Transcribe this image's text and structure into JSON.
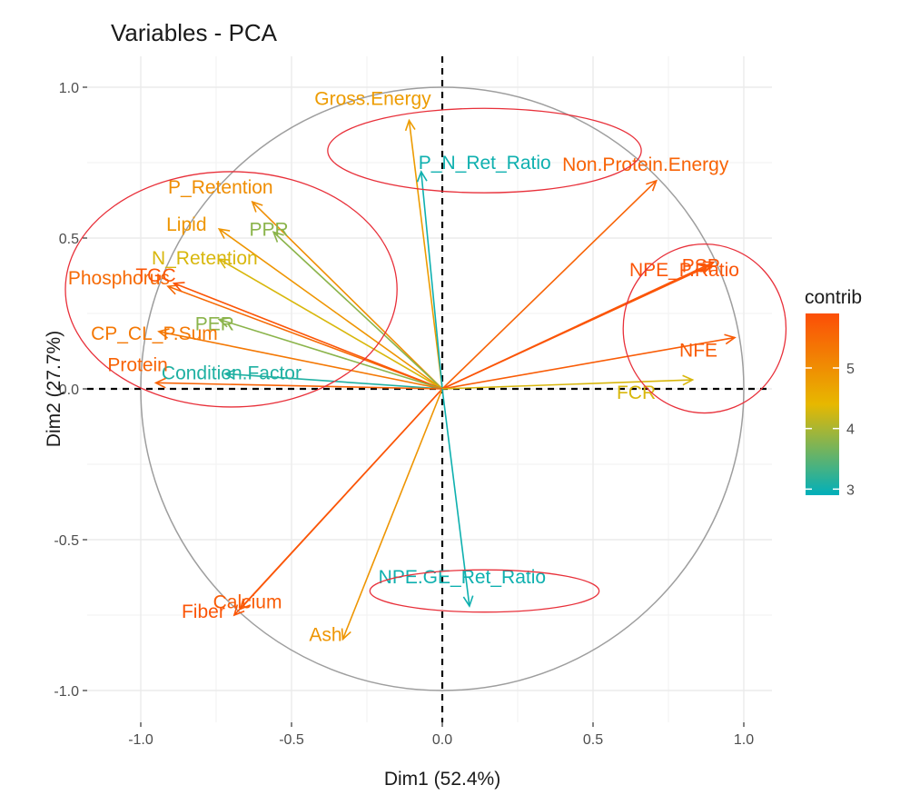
{
  "chart_data": {
    "type": "scatter",
    "subtype": "pca-variable-correlation-circle",
    "title": "Variables - PCA",
    "xlabel": "Dim1 (52.4%)",
    "ylabel": "Dim2 (27.7%)",
    "xlim": [
      -1.1,
      1.1
    ],
    "ylim": [
      -1.07,
      1.07
    ],
    "x_ticks": [
      -1.0,
      -0.5,
      0.0,
      0.5,
      1.0
    ],
    "x_tick_labels": [
      "-1.0",
      "-0.5",
      "0.0",
      "0.5",
      "1.0"
    ],
    "y_ticks": [
      -1.0,
      -0.5,
      0.0,
      0.5,
      1.0
    ],
    "y_tick_labels": [
      "-1.0",
      "-0.5",
      "0.0",
      "0.5",
      "1.0"
    ],
    "grid": true,
    "legend": {
      "title": "contrib",
      "position": "right",
      "range": [
        2.9,
        5.9
      ],
      "ticks": [
        3,
        4,
        5
      ],
      "tick_labels": [
        "3",
        "4",
        "5"
      ],
      "colors": [
        "#00AFBB",
        "#E7B800",
        "#FC4E07"
      ]
    },
    "variables": [
      {
        "name": "Gross.Energy",
        "x": -0.11,
        "y": 0.89,
        "contrib": 4.8
      },
      {
        "name": "P_N_Ret_Ratio",
        "x": -0.07,
        "y": 0.72,
        "contrib": 3.0
      },
      {
        "name": "P_Retention",
        "x": -0.63,
        "y": 0.62,
        "contrib": 5.0
      },
      {
        "name": "PPR",
        "x": -0.56,
        "y": 0.52,
        "contrib": 3.8
      },
      {
        "name": "Lipid",
        "x": -0.74,
        "y": 0.53,
        "contrib": 4.9
      },
      {
        "name": "N_Retention",
        "x": -0.74,
        "y": 0.43,
        "contrib": 4.3
      },
      {
        "name": "Phosphorus",
        "x": -0.91,
        "y": 0.34,
        "contrib": 5.5
      },
      {
        "name": "TGC",
        "x": -0.89,
        "y": 0.35,
        "contrib": 5.8
      },
      {
        "name": "PER",
        "x": -0.74,
        "y": 0.23,
        "contrib": 3.8
      },
      {
        "name": "CP_CL_P.Sum",
        "x": -0.94,
        "y": 0.19,
        "contrib": 5.3
      },
      {
        "name": "Condition.Factor",
        "x": -0.72,
        "y": 0.05,
        "contrib": 3.1
      },
      {
        "name": "Protein",
        "x": -0.95,
        "y": 0.02,
        "contrib": 5.6
      },
      {
        "name": "Non.Protein.Energy",
        "x": 0.71,
        "y": 0.69,
        "contrib": 5.6
      },
      {
        "name": "PSP",
        "x": 0.9,
        "y": 0.42,
        "contrib": 5.8
      },
      {
        "name": "NPE_P.Ratio",
        "x": 0.89,
        "y": 0.41,
        "contrib": 5.8
      },
      {
        "name": "NFE",
        "x": 0.97,
        "y": 0.17,
        "contrib": 5.7
      },
      {
        "name": "FCR",
        "x": 0.83,
        "y": 0.03,
        "contrib": 4.3
      },
      {
        "name": "Calcium",
        "x": -0.67,
        "y": -0.73,
        "contrib": 5.7
      },
      {
        "name": "Fiber",
        "x": -0.69,
        "y": -0.75,
        "contrib": 5.8
      },
      {
        "name": "Ash",
        "x": -0.33,
        "y": -0.83,
        "contrib": 4.9
      },
      {
        "name": "NPE.GE_Ret_Ratio",
        "x": 0.09,
        "y": -0.72,
        "contrib": 3.0
      }
    ],
    "annotations": [
      {
        "type": "ellipse",
        "color": "#E8303A",
        "cx": -0.7,
        "cy": 0.33,
        "rx": 0.55,
        "ry": 0.39
      },
      {
        "type": "ellipse",
        "color": "#E8303A",
        "cx": 0.14,
        "cy": 0.79,
        "rx": 0.52,
        "ry": 0.14
      },
      {
        "type": "ellipse",
        "color": "#E8303A",
        "cx": 0.87,
        "cy": 0.2,
        "rx": 0.27,
        "ry": 0.28
      },
      {
        "type": "ellipse",
        "color": "#E8303A",
        "cx": 0.14,
        "cy": -0.67,
        "rx": 0.38,
        "ry": 0.07
      }
    ]
  }
}
